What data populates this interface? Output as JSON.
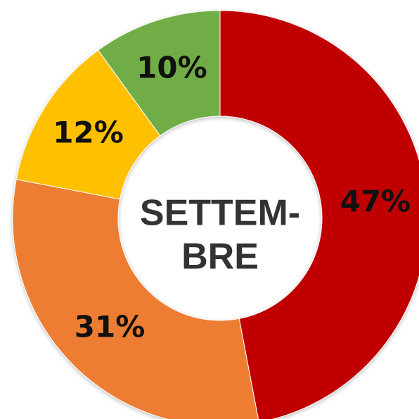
{
  "chart_data": {
    "type": "donut",
    "center_label": [
      "SETTEM-",
      "BRE"
    ],
    "categories": [
      null,
      null,
      null,
      null
    ],
    "values": [
      47,
      31,
      12,
      10
    ],
    "value_labels": [
      "47%",
      "31%",
      "12%",
      "10%"
    ],
    "colors": [
      "#c00000",
      "#ed7d31",
      "#ffc000",
      "#70ad47"
    ]
  }
}
